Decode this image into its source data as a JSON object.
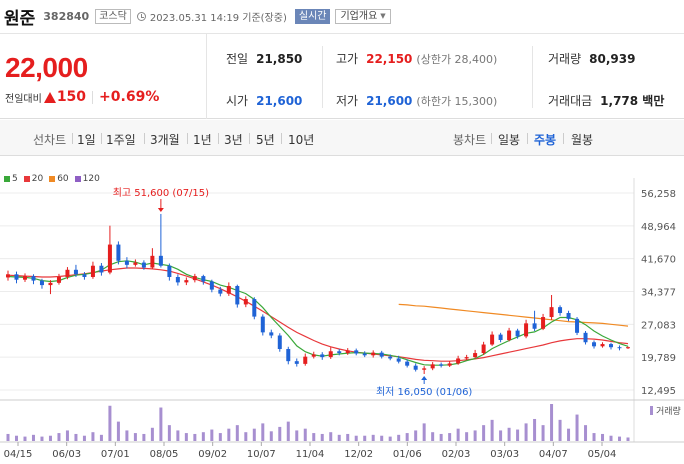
{
  "header": {
    "name": "원준",
    "code": "382840",
    "market": "코스닥",
    "update_time": "2023.05.31 14:19 기준(장중)",
    "realtime": "실시간",
    "company_info": "기업개요"
  },
  "price": {
    "current": "22,000",
    "change_label": "전일대비",
    "change": "150",
    "change_pct": "+0.69%"
  },
  "stats": {
    "prev_close_label": "전일",
    "prev_close": "21,850",
    "high_label": "고가",
    "high": "22,150",
    "upper_limit": "(상한가 28,400)",
    "volume_label": "거래량",
    "volume": "80,939",
    "open_label": "시가",
    "open": "21,600",
    "low_label": "저가",
    "low": "21,600",
    "lower_limit": "(하한가 15,300)",
    "amount_label": "거래대금",
    "amount": "1,778 백만"
  },
  "range_bar": {
    "line_chart_label": "선차트",
    "periods": [
      "1일",
      "1주일",
      "3개월",
      "1년",
      "3년",
      "5년",
      "10년"
    ],
    "candle_label": "봉차트",
    "candle_periods": [
      "일봉",
      "주봉",
      "월봉"
    ],
    "active_candle": "주봉"
  },
  "colors": {
    "up": "#e51e1e",
    "down": "#1f63d6",
    "ma5": "#3aa83a",
    "ma20": "#e8383b",
    "ma60": "#f08a24",
    "ma120": "#8f5fc4",
    "volume": "#a78fd0"
  },
  "chart_data": {
    "type": "candlestick",
    "legend": [
      "5",
      "20",
      "60",
      "120"
    ],
    "y_ticks": [
      "56,258",
      "48,964",
      "41,670",
      "34,377",
      "27,083",
      "19,789",
      "12,495"
    ],
    "ylim": [
      12495,
      56258
    ],
    "x_labels": [
      "04/15",
      "06/03",
      "07/01",
      "08/05",
      "09/02",
      "10/07",
      "11/04",
      "12/02",
      "01/06",
      "02/03",
      "03/03",
      "04/07",
      "05/04"
    ],
    "high_annotation": "최고 51,600 (07/15)",
    "low_annotation": "최저 16,050 (01/06)",
    "volume_label": "거래량",
    "candles": [
      [
        37500,
        38200,
        39000,
        36800
      ],
      [
        38200,
        37000,
        38800,
        36200
      ],
      [
        37000,
        37800,
        38400,
        36500
      ],
      [
        37800,
        36800,
        38200,
        36000
      ],
      [
        36800,
        35800,
        37200,
        35000
      ],
      [
        35800,
        36300,
        36900,
        33800
      ],
      [
        36300,
        37600,
        38300,
        35900
      ],
      [
        37600,
        39200,
        39800,
        37100
      ],
      [
        39200,
        38200,
        40300,
        37600
      ],
      [
        38200,
        37600,
        38700,
        37000
      ],
      [
        37600,
        40100,
        41000,
        37200
      ],
      [
        40100,
        38600,
        40700,
        37900
      ],
      [
        38600,
        44800,
        49000,
        38200
      ],
      [
        44800,
        41200,
        45500,
        40400
      ],
      [
        41200,
        40300,
        42000,
        39500
      ],
      [
        40300,
        40800,
        41500,
        39900
      ],
      [
        40800,
        39700,
        41300,
        39200
      ],
      [
        39700,
        42300,
        44000,
        39400
      ],
      [
        42300,
        40100,
        51600,
        39700
      ],
      [
        40100,
        37600,
        40600,
        36800
      ],
      [
        37600,
        36400,
        38200,
        35700
      ],
      [
        36400,
        36900,
        37500,
        35800
      ],
      [
        36900,
        37800,
        38300,
        36400
      ],
      [
        37800,
        36600,
        38100,
        35900
      ],
      [
        36600,
        34800,
        37000,
        34200
      ],
      [
        34800,
        33900,
        35400,
        33300
      ],
      [
        33900,
        35600,
        36400,
        33400
      ],
      [
        35600,
        31500,
        35900,
        30800
      ],
      [
        31500,
        32700,
        33300,
        30900
      ],
      [
        32700,
        28800,
        33100,
        28200
      ],
      [
        28800,
        25300,
        29300,
        24600
      ],
      [
        25300,
        24600,
        25900,
        24000
      ],
      [
        24600,
        21600,
        25100,
        21000
      ],
      [
        21600,
        18900,
        22100,
        18200
      ],
      [
        18900,
        18300,
        19500,
        17700
      ],
      [
        18300,
        19900,
        20600,
        17900
      ],
      [
        19900,
        20400,
        21000,
        19500
      ],
      [
        20400,
        19800,
        20900,
        19200
      ],
      [
        19800,
        21100,
        22000,
        19400
      ],
      [
        21100,
        20700,
        21600,
        20200
      ],
      [
        20700,
        21300,
        21800,
        20300
      ],
      [
        21300,
        20600,
        21700,
        20200
      ],
      [
        20600,
        20200,
        21100,
        19800
      ],
      [
        20200,
        20800,
        21300,
        19700
      ],
      [
        20800,
        19900,
        21200,
        19500
      ],
      [
        19900,
        19500,
        20400,
        19100
      ],
      [
        19500,
        18800,
        20100,
        18400
      ],
      [
        18800,
        17900,
        19300,
        17500
      ],
      [
        17900,
        17000,
        18400,
        16600
      ],
      [
        17000,
        17300,
        17800,
        16050
      ],
      [
        17300,
        18200,
        18700,
        16900
      ],
      [
        18200,
        17900,
        18600,
        17500
      ],
      [
        17900,
        18400,
        18900,
        17600
      ],
      [
        18400,
        19500,
        20100,
        18100
      ],
      [
        19500,
        19800,
        20300,
        19100
      ],
      [
        19800,
        20700,
        21400,
        19500
      ],
      [
        20700,
        22600,
        23200,
        20300
      ],
      [
        22600,
        24800,
        25500,
        22300
      ],
      [
        24800,
        23600,
        25200,
        23100
      ],
      [
        23600,
        25700,
        26300,
        23300
      ],
      [
        25700,
        24400,
        26100,
        23900
      ],
      [
        24400,
        27300,
        28100,
        24000
      ],
      [
        27300,
        26100,
        30100,
        25600
      ],
      [
        26100,
        28700,
        29400,
        25800
      ],
      [
        28700,
        30900,
        33600,
        28100
      ],
      [
        30900,
        29600,
        31300,
        29000
      ],
      [
        29600,
        28300,
        30100,
        27800
      ],
      [
        28300,
        25200,
        28700,
        24700
      ],
      [
        25200,
        23100,
        25600,
        22600
      ],
      [
        23100,
        22200,
        23500,
        21700
      ],
      [
        22200,
        22700,
        23100,
        21900
      ],
      [
        22700,
        22000,
        23000,
        21500
      ],
      [
        22000,
        21850,
        22400,
        21300
      ],
      [
        21850,
        22000,
        22150,
        21600
      ]
    ],
    "ma5": [
      37700,
      37600,
      37500,
      37300,
      36800,
      36600,
      36800,
      37500,
      38000,
      38200,
      38500,
      39100,
      40300,
      41000,
      41200,
      40900,
      40300,
      40700,
      40400,
      40100,
      39300,
      38200,
      37500,
      37000,
      36600,
      35800,
      35300,
      34600,
      33900,
      32600,
      30800,
      28600,
      26600,
      24600,
      22300,
      21000,
      20300,
      20000,
      20300,
      20500,
      20700,
      20800,
      20700,
      20600,
      20500,
      20200,
      19800,
      19200,
      18600,
      18100,
      18000,
      18000,
      18100,
      18400,
      19000,
      19500,
      20400,
      21700,
      22600,
      23500,
      24300,
      25100,
      25400,
      26300,
      27600,
      28600,
      28600,
      28100,
      27000,
      25600,
      24500,
      23600,
      22800,
      22200
    ],
    "ma20": [
      38000,
      37900,
      37800,
      37700,
      37600,
      37600,
      37700,
      37900,
      38100,
      38300,
      38600,
      38900,
      39200,
      39400,
      39600,
      39600,
      39500,
      39400,
      39200,
      38900,
      38400,
      37800,
      37200,
      36500,
      35800,
      35000,
      34100,
      33200,
      32200,
      31100,
      30000,
      28800,
      27600,
      26400,
      25300,
      24400,
      23500,
      22700,
      22100,
      21600,
      21200,
      20900,
      20700,
      20500,
      20300,
      20100,
      19900,
      19600,
      19300,
      19100,
      19000,
      18900,
      18900,
      19000,
      19200,
      19400,
      19700,
      20100,
      20500,
      20900,
      21300,
      21700,
      22100,
      22500,
      23000,
      23400,
      23700,
      23900,
      23900,
      23800,
      23600,
      23300,
      23000,
      22800
    ],
    "ma60_start_index": 46,
    "ma60": [
      31500,
      31400,
      31200,
      31100,
      30900,
      30700,
      30500,
      30300,
      30100,
      29900,
      29700,
      29500,
      29300,
      29100,
      28900,
      28700,
      28500,
      28300,
      28100,
      27900,
      27700,
      27600,
      27500,
      27400,
      27300,
      27100,
      26900,
      26700
    ],
    "volumes": [
      8,
      6,
      5,
      7,
      5,
      6,
      9,
      12,
      8,
      6,
      10,
      7,
      40,
      22,
      12,
      9,
      8,
      15,
      38,
      18,
      12,
      9,
      8,
      10,
      13,
      9,
      14,
      18,
      10,
      14,
      20,
      11,
      16,
      22,
      12,
      14,
      9,
      8,
      10,
      7,
      8,
      6,
      6,
      7,
      6,
      5,
      7,
      9,
      12,
      20,
      10,
      8,
      9,
      14,
      10,
      12,
      18,
      24,
      12,
      15,
      13,
      20,
      25,
      18,
      42,
      24,
      14,
      30,
      18,
      9,
      8,
      6,
      5,
      4
    ]
  }
}
